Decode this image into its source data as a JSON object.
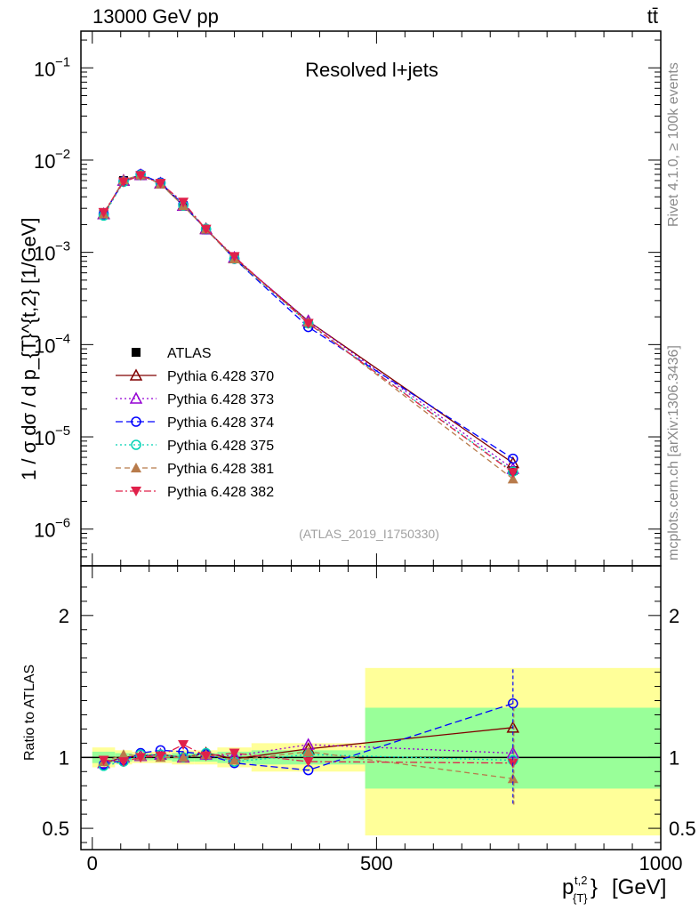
{
  "header": {
    "left": "13000 GeV pp",
    "right": "tt̄"
  },
  "side_labels": {
    "rivet": "Rivet 4.1.0, ≥ 100k events",
    "mcplots": "mcplots.cern.ch [arXiv:1306.3436]"
  },
  "chart_data": [
    {
      "type": "line",
      "panel": "main",
      "title": "Resolved l+jets",
      "watermark": "(ATLAS_2019_I1750330)",
      "ylabel": "1 / σ dσ / d p_{T}^{t,2} [1/GeV]",
      "yscale": "log",
      "ylim": [
        4e-07,
        0.25
      ],
      "xlim": [
        -20,
        1000
      ],
      "ytick_labels": [
        {
          "base": "10",
          "exp": "−1",
          "value": 0.1
        },
        {
          "base": "10",
          "exp": "−2",
          "value": 0.01
        },
        {
          "base": "10",
          "exp": "−3",
          "value": 0.001
        },
        {
          "base": "10",
          "exp": "−4",
          "value": 0.0001
        },
        {
          "base": "10",
          "exp": "−5",
          "value": 1e-05
        },
        {
          "base": "10",
          "exp": "−6",
          "value": 1e-06
        }
      ],
      "x": [
        20,
        55,
        85,
        120,
        160,
        200,
        250,
        380,
        740
      ],
      "series": [
        {
          "name": "ATLAS",
          "color": "#000000",
          "marker": "square",
          "values": [
            0.0027,
            0.006,
            0.0068,
            0.0055,
            0.0032,
            0.00175,
            0.00087,
            0.00017,
            4.3e-06
          ]
        },
        {
          "name": "Pythia 6.428 370",
          "color": "#800000",
          "marker": "triangle-up-open",
          "dash": "",
          "values": [
            0.0026,
            0.006,
            0.0069,
            0.0056,
            0.0032,
            0.0018,
            0.00087,
            0.00018,
            5.2e-06
          ]
        },
        {
          "name": "Pythia 6.428 373",
          "color": "#9400d3",
          "marker": "triangle-up-open",
          "dash": "2,3",
          "values": [
            0.0026,
            0.006,
            0.0069,
            0.0056,
            0.0032,
            0.00178,
            0.00088,
            0.00018,
            4.5e-06
          ]
        },
        {
          "name": "Pythia 6.428 374",
          "color": "#0000ff",
          "marker": "circle-open",
          "dash": "8,4",
          "values": [
            0.0026,
            0.0059,
            0.007,
            0.0057,
            0.0033,
            0.00178,
            0.00085,
            0.000155,
            5.8e-06
          ]
        },
        {
          "name": "Pythia 6.428 375",
          "color": "#00d2b4",
          "marker": "circle-open",
          "dash": "2,3",
          "values": [
            0.0025,
            0.0058,
            0.0069,
            0.0056,
            0.0032,
            0.0018,
            0.00085,
            0.00017,
            4.2e-06
          ]
        },
        {
          "name": "Pythia 6.428 381",
          "color": "#b87b4b",
          "marker": "triangle-up",
          "dash": "6,4",
          "values": [
            0.0026,
            0.0061,
            0.0069,
            0.0055,
            0.0032,
            0.00178,
            0.00085,
            0.000175,
            3.5e-06
          ]
        },
        {
          "name": "Pythia 6.428 382",
          "color": "#e0204a",
          "marker": "triangle-down",
          "dash": "8,3,2,3",
          "values": [
            0.0027,
            0.0058,
            0.0068,
            0.0056,
            0.0035,
            0.00178,
            0.0009,
            0.00017,
            4.1e-06
          ]
        }
      ]
    },
    {
      "type": "line",
      "panel": "ratio",
      "ylabel": "Ratio to ATLAS",
      "xlabel_base": "p",
      "xlabel_sup": "t,2",
      "xlabel_sub": "{T}",
      "xlabel_mid": "}",
      "xlabel_unit": "[GeV]",
      "ylim": [
        0.35,
        2.35
      ],
      "xlim": [
        -20,
        1000
      ],
      "ytick_labels": [
        "2",
        "1",
        "0.5"
      ],
      "ytick_values": [
        2,
        1,
        0.5
      ],
      "xtick_labels": [
        "0",
        "500",
        "1000"
      ],
      "xtick_values": [
        0,
        500,
        1000
      ],
      "bands": {
        "bins": [
          [
            0,
            40
          ],
          [
            40,
            70
          ],
          [
            70,
            100
          ],
          [
            100,
            140
          ],
          [
            140,
            180
          ],
          [
            180,
            220
          ],
          [
            220,
            280
          ],
          [
            280,
            480
          ],
          [
            480,
            1000
          ]
        ],
        "yellow": [
          [
            0.93,
            1.07
          ],
          [
            0.95,
            1.05
          ],
          [
            0.96,
            1.04
          ],
          [
            0.96,
            1.04
          ],
          [
            0.95,
            1.05
          ],
          [
            0.95,
            1.05
          ],
          [
            0.93,
            1.07
          ],
          [
            0.9,
            1.1
          ],
          [
            0.45,
            1.63
          ]
        ],
        "green": [
          [
            0.96,
            1.04
          ],
          [
            0.97,
            1.03
          ],
          [
            0.98,
            1.02
          ],
          [
            0.98,
            1.02
          ],
          [
            0.97,
            1.03
          ],
          [
            0.97,
            1.03
          ],
          [
            0.96,
            1.04
          ],
          [
            0.95,
            1.05
          ],
          [
            0.78,
            1.35
          ]
        ]
      },
      "series": [
        {
          "name": "Pythia 6.428 370",
          "values": [
            0.96,
            1.0,
            1.01,
            1.02,
            1.0,
            1.03,
            0.99,
            1.06,
            1.21
          ]
        },
        {
          "name": "Pythia 6.428 373",
          "values": [
            0.96,
            1.0,
            1.01,
            1.02,
            1.0,
            1.02,
            1.01,
            1.09,
            1.03
          ]
        },
        {
          "name": "Pythia 6.428 374",
          "values": [
            0.95,
            0.98,
            1.03,
            1.05,
            1.04,
            1.02,
            0.96,
            0.91,
            1.38
          ]
        },
        {
          "name": "Pythia 6.428 375",
          "values": [
            0.94,
            0.97,
            1.02,
            1.02,
            1.0,
            1.03,
            0.97,
            1.02,
            0.98
          ]
        },
        {
          "name": "Pythia 6.428 381",
          "values": [
            0.97,
            1.02,
            1.01,
            1.0,
            1.0,
            1.02,
            0.98,
            1.04,
            0.85
          ]
        },
        {
          "name": "Pythia 6.428 382",
          "values": [
            0.98,
            0.97,
            1.0,
            1.01,
            1.09,
            1.01,
            1.03,
            0.97,
            0.96
          ]
        }
      ]
    }
  ]
}
